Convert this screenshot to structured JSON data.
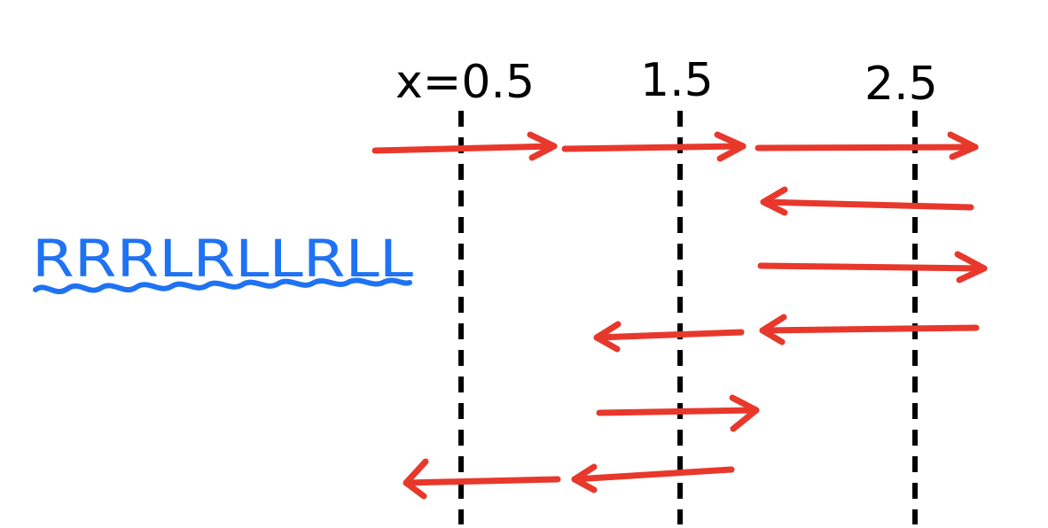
{
  "labels": {
    "line_1": "x=0.5",
    "line_2": "1.5",
    "line_3": "2.5"
  },
  "sequence": "RRRLRLLRLL",
  "colors": {
    "arrow": "#e8382c",
    "sequence": "#1f72f2",
    "ink": "#000000"
  },
  "moves": [
    "R",
    "R",
    "R",
    "L",
    "R",
    "L",
    "L",
    "R",
    "L",
    "L"
  ]
}
